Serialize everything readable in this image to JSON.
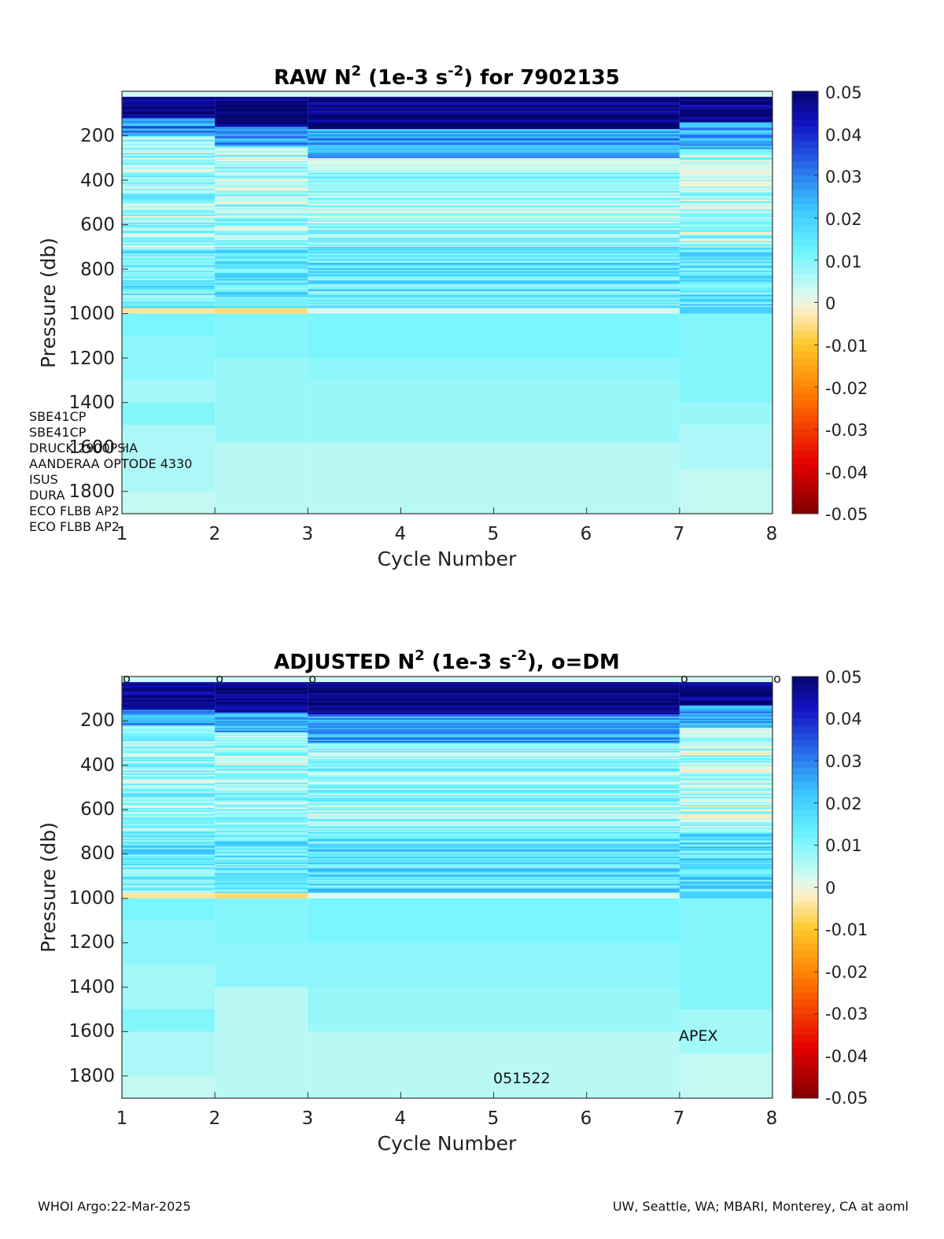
{
  "charts": [
    {
      "title": {
        "base": "RAW N",
        "sup1": "2",
        "mid": " (1e-3 s",
        "sup2": "-2",
        "end": ") for 7902135"
      },
      "xlabel": "Cycle Number",
      "ylabel": "Pressure (db)",
      "xticks": [
        "1",
        "2",
        "3",
        "4",
        "5",
        "6",
        "7",
        "8"
      ],
      "yticks": [
        "200",
        "400",
        "600",
        "800",
        "1000",
        "1200",
        "1400",
        "1600",
        "1800"
      ],
      "colorbar_ticks": [
        "0.05",
        "0.04",
        "0.03",
        "0.02",
        "0.01",
        "0",
        "-0.01",
        "-0.02",
        "-0.03",
        "-0.04",
        "-0.05"
      ],
      "sensors": [
        "SBE41CP",
        "SBE41CP",
        "DRUCK 2900PSIA",
        "AANDERAA OPTODE 4330",
        "ISUS",
        "DURA",
        "ECO FLBB AP2",
        "ECO FLBB AP2"
      ]
    },
    {
      "title": {
        "base": "ADJUSTED N",
        "sup1": "2",
        "mid": " (1e-3 s",
        "sup2": "-2",
        "end": "), o=DM"
      },
      "xlabel": "Cycle Number",
      "ylabel": "Pressure (db)",
      "xticks": [
        "1",
        "2",
        "3",
        "4",
        "5",
        "6",
        "7",
        "8"
      ],
      "yticks": [
        "200",
        "400",
        "600",
        "800",
        "1000",
        "1200",
        "1400",
        "1600",
        "1800"
      ],
      "colorbar_ticks": [
        "0.05",
        "0.04",
        "0.03",
        "0.02",
        "0.01",
        "0",
        "-0.01",
        "-0.02",
        "-0.03",
        "-0.04",
        "-0.05"
      ],
      "dm_marker": "o",
      "annotations": {
        "platform": "APEX",
        "id": "051522"
      }
    }
  ],
  "footer": {
    "left": "WHOI Argo:22-Mar-2025",
    "right": "UW, Seattle, WA; MBARI, Monterey, CA at aoml"
  },
  "chart_data": [
    {
      "type": "heatmap",
      "title": "RAW N2 (1e-3 s-2) for 7902135",
      "xlabel": "Cycle Number",
      "ylabel": "Pressure (db)",
      "xlim": [
        1,
        8
      ],
      "ylim": [
        1900,
        0
      ],
      "y_reversed": true,
      "clim": [
        -0.05,
        0.05
      ],
      "colormap": "jet-like diverging (dark red -> orange -> pale yellow -> cyan -> blue -> navy)",
      "columns": [
        {
          "x0": 1,
          "x1": 2,
          "pmin": 25,
          "pmax": 1900,
          "bands": [
            {
              "p0": 25,
              "p1": 120,
              "value": 0.048
            },
            {
              "p0": 120,
              "p1": 200,
              "value": 0.028
            },
            {
              "p0": 200,
              "p1": 700,
              "value": 0.008
            },
            {
              "p0": 700,
              "p1": 975,
              "value": 0.014
            },
            {
              "p0": 975,
              "p1": 1000,
              "value": -0.004
            },
            {
              "p0": 1000,
              "p1": 1100,
              "value": 0.011
            },
            {
              "p0": 1100,
              "p1": 1300,
              "value": 0.009
            },
            {
              "p0": 1300,
              "p1": 1400,
              "value": 0.007
            },
            {
              "p0": 1400,
              "p1": 1500,
              "value": 0.01
            },
            {
              "p0": 1500,
              "p1": 1800,
              "value": 0.006
            },
            {
              "p0": 1800,
              "p1": 1900,
              "value": 0.004
            }
          ]
        },
        {
          "x0": 2,
          "x1": 3,
          "pmin": 25,
          "pmax": 1900,
          "bands": [
            {
              "p0": 25,
              "p1": 160,
              "value": 0.048
            },
            {
              "p0": 160,
              "p1": 250,
              "value": 0.026
            },
            {
              "p0": 250,
              "p1": 700,
              "value": 0.007
            },
            {
              "p0": 700,
              "p1": 975,
              "value": 0.015
            },
            {
              "p0": 975,
              "p1": 1000,
              "value": -0.006
            },
            {
              "p0": 1000,
              "p1": 1200,
              "value": 0.01
            },
            {
              "p0": 1200,
              "p1": 1580,
              "value": 0.008
            },
            {
              "p0": 1580,
              "p1": 1900,
              "value": 0.005
            }
          ]
        },
        {
          "x0": 3,
          "x1": 7,
          "pmin": 25,
          "pmax": 1900,
          "bands": [
            {
              "p0": 25,
              "p1": 170,
              "value": 0.049
            },
            {
              "p0": 170,
              "p1": 300,
              "value": 0.027
            },
            {
              "p0": 300,
              "p1": 700,
              "value": 0.008
            },
            {
              "p0": 700,
              "p1": 975,
              "value": 0.016
            },
            {
              "p0": 975,
              "p1": 1000,
              "value": 0.002
            },
            {
              "p0": 1000,
              "p1": 1200,
              "value": 0.011
            },
            {
              "p0": 1200,
              "p1": 1300,
              "value": 0.009
            },
            {
              "p0": 1300,
              "p1": 1580,
              "value": 0.008
            },
            {
              "p0": 1580,
              "p1": 1900,
              "value": 0.005
            }
          ]
        },
        {
          "x0": 7,
          "x1": 8,
          "pmin": 25,
          "pmax": 1900,
          "bands": [
            {
              "p0": 25,
              "p1": 140,
              "value": 0.048
            },
            {
              "p0": 140,
              "p1": 260,
              "value": 0.024
            },
            {
              "p0": 260,
              "p1": 700,
              "value": 0.006
            },
            {
              "p0": 700,
              "p1": 970,
              "value": 0.016
            },
            {
              "p0": 970,
              "p1": 1000,
              "value": 0.02
            },
            {
              "p0": 1000,
              "p1": 1400,
              "value": 0.01
            },
            {
              "p0": 1400,
              "p1": 1500,
              "value": 0.008
            },
            {
              "p0": 1500,
              "p1": 1700,
              "value": 0.006
            },
            {
              "p0": 1700,
              "p1": 1900,
              "value": 0.004
            }
          ]
        }
      ]
    },
    {
      "type": "heatmap",
      "title": "ADJUSTED N2 (1e-3 s-2), o=DM",
      "xlabel": "Cycle Number",
      "ylabel": "Pressure (db)",
      "xlim": [
        1,
        8
      ],
      "ylim": [
        1900,
        0
      ],
      "y_reversed": true,
      "clim": [
        -0.05,
        0.05
      ],
      "colormap": "jet-like diverging (dark red -> orange -> pale yellow -> cyan -> blue -> navy)",
      "dm_cycles": [
        1,
        2,
        3,
        7,
        8
      ],
      "columns": [
        {
          "x0": 1,
          "x1": 2,
          "pmin": 25,
          "pmax": 1900,
          "bands": [
            {
              "p0": 25,
              "p1": 150,
              "value": 0.048
            },
            {
              "p0": 150,
              "p1": 220,
              "value": 0.028
            },
            {
              "p0": 220,
              "p1": 700,
              "value": 0.008
            },
            {
              "p0": 700,
              "p1": 975,
              "value": 0.014
            },
            {
              "p0": 975,
              "p1": 1000,
              "value": -0.004
            },
            {
              "p0": 1000,
              "p1": 1100,
              "value": 0.011
            },
            {
              "p0": 1100,
              "p1": 1300,
              "value": 0.009
            },
            {
              "p0": 1300,
              "p1": 1500,
              "value": 0.007
            },
            {
              "p0": 1500,
              "p1": 1600,
              "value": 0.01
            },
            {
              "p0": 1600,
              "p1": 1800,
              "value": 0.006
            },
            {
              "p0": 1800,
              "p1": 1900,
              "value": 0.004
            }
          ]
        },
        {
          "x0": 2,
          "x1": 3,
          "pmin": 25,
          "pmax": 1900,
          "bands": [
            {
              "p0": 25,
              "p1": 160,
              "value": 0.048
            },
            {
              "p0": 160,
              "p1": 250,
              "value": 0.026
            },
            {
              "p0": 250,
              "p1": 700,
              "value": 0.007
            },
            {
              "p0": 700,
              "p1": 975,
              "value": 0.015
            },
            {
              "p0": 975,
              "p1": 1000,
              "value": -0.006
            },
            {
              "p0": 1000,
              "p1": 1200,
              "value": 0.01
            },
            {
              "p0": 1200,
              "p1": 1400,
              "value": 0.009
            },
            {
              "p0": 1400,
              "p1": 1900,
              "value": 0.005
            }
          ]
        },
        {
          "x0": 3,
          "x1": 7,
          "pmin": 25,
          "pmax": 1900,
          "bands": [
            {
              "p0": 25,
              "p1": 170,
              "value": 0.049
            },
            {
              "p0": 170,
              "p1": 300,
              "value": 0.027
            },
            {
              "p0": 300,
              "p1": 700,
              "value": 0.008
            },
            {
              "p0": 700,
              "p1": 975,
              "value": 0.016
            },
            {
              "p0": 975,
              "p1": 1000,
              "value": 0.002
            },
            {
              "p0": 1000,
              "p1": 1200,
              "value": 0.011
            },
            {
              "p0": 1200,
              "p1": 1400,
              "value": 0.009
            },
            {
              "p0": 1400,
              "p1": 1600,
              "value": 0.008
            },
            {
              "p0": 1600,
              "p1": 1900,
              "value": 0.005
            }
          ]
        },
        {
          "x0": 7,
          "x1": 8,
          "pmin": 25,
          "pmax": 1900,
          "bands": [
            {
              "p0": 25,
              "p1": 130,
              "value": 0.048
            },
            {
              "p0": 130,
              "p1": 230,
              "value": 0.026
            },
            {
              "p0": 230,
              "p1": 700,
              "value": 0.006
            },
            {
              "p0": 700,
              "p1": 970,
              "value": 0.016
            },
            {
              "p0": 970,
              "p1": 1000,
              "value": 0.02
            },
            {
              "p0": 1000,
              "p1": 1500,
              "value": 0.01
            },
            {
              "p0": 1500,
              "p1": 1700,
              "value": 0.007
            },
            {
              "p0": 1700,
              "p1": 1900,
              "value": 0.004
            }
          ]
        }
      ]
    }
  ]
}
